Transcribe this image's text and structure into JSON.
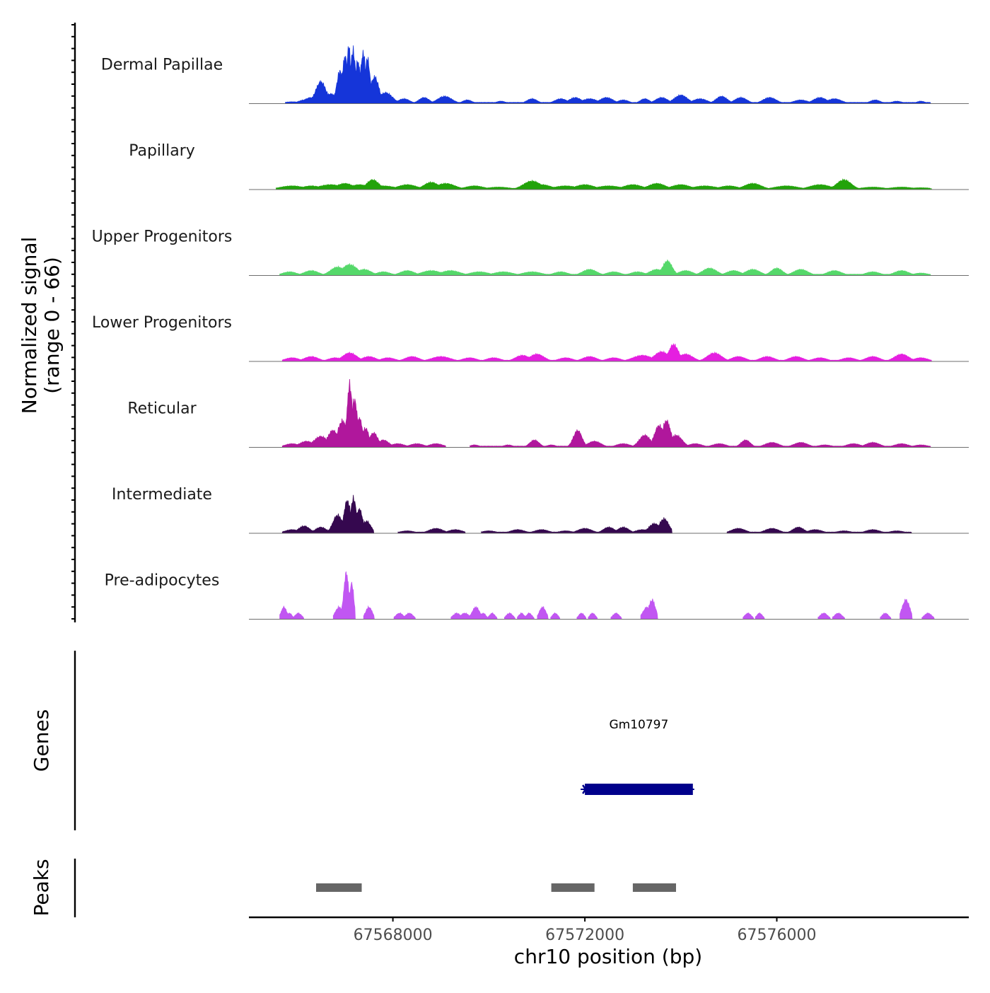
{
  "chart_data": {
    "type": "area",
    "subtype": "genome-coverage-tracks",
    "region": {
      "chrom": "chr10",
      "start": 67565000,
      "end": 67580000
    },
    "xlabel": "chr10 position (bp)",
    "xticks": [
      67568000,
      67572000,
      67576000
    ],
    "xtick_labels": [
      "67568000",
      "67572000",
      "67576000"
    ],
    "ylabel_lines": [
      "Normalized signal",
      "(range 0 - 66)"
    ],
    "ylim": [
      0,
      66
    ],
    "tracks": [
      {
        "name": "Dermal Papillae",
        "color": "#1535d9",
        "segments": [
          [
            67565760,
            67579200
          ]
        ],
        "peaks": [
          [
            67565900,
            1.5,
            180
          ],
          [
            67566150,
            3,
            120
          ],
          [
            67566300,
            5,
            150
          ],
          [
            67566500,
            18,
            110
          ],
          [
            67566700,
            8,
            150
          ],
          [
            67566900,
            27,
            70
          ],
          [
            67567000,
            39,
            55
          ],
          [
            67567080,
            48,
            40
          ],
          [
            67567170,
            44,
            55
          ],
          [
            67567270,
            35,
            55
          ],
          [
            67567380,
            42,
            55
          ],
          [
            67567470,
            37,
            55
          ],
          [
            67567620,
            22,
            90
          ],
          [
            67567850,
            9,
            140
          ],
          [
            67568230,
            4,
            120
          ],
          [
            67568650,
            5,
            110
          ],
          [
            67569080,
            6,
            150
          ],
          [
            67569550,
            3,
            100
          ],
          [
            67570250,
            2,
            100
          ],
          [
            67570900,
            4,
            110
          ],
          [
            67571500,
            4,
            130
          ],
          [
            67571800,
            5,
            130
          ],
          [
            67572100,
            4,
            160
          ],
          [
            67572450,
            5,
            140
          ],
          [
            67572800,
            3,
            120
          ],
          [
            67573250,
            4,
            100
          ],
          [
            67573600,
            5,
            130
          ],
          [
            67574000,
            7,
            140
          ],
          [
            67574400,
            4,
            150
          ],
          [
            67574850,
            6,
            120
          ],
          [
            67575250,
            5,
            130
          ],
          [
            67575850,
            5,
            140
          ],
          [
            67576500,
            3,
            150
          ],
          [
            67576900,
            5,
            140
          ],
          [
            67577200,
            4,
            150
          ],
          [
            67578050,
            3,
            110
          ],
          [
            67578500,
            2,
            110
          ],
          [
            67579000,
            2,
            90
          ]
        ]
      },
      {
        "name": "Papillary",
        "color": "#22a30a",
        "segments": [
          [
            67565760,
            67579200
          ]
        ],
        "peaks": [
          [
            67565900,
            3,
            250
          ],
          [
            67566300,
            3,
            200
          ],
          [
            67566700,
            4,
            250
          ],
          [
            67567000,
            5,
            180
          ],
          [
            67567300,
            4,
            200
          ],
          [
            67567580,
            8,
            130
          ],
          [
            67567800,
            3,
            250
          ],
          [
            67568300,
            4,
            200
          ],
          [
            67568800,
            6,
            150
          ],
          [
            67569100,
            5,
            200
          ],
          [
            67569700,
            3,
            200
          ],
          [
            67570200,
            2,
            250
          ],
          [
            67570900,
            7,
            180
          ],
          [
            67571100,
            4,
            200
          ],
          [
            67571600,
            3,
            250
          ],
          [
            67572000,
            4,
            200
          ],
          [
            67572500,
            3,
            250
          ],
          [
            67573000,
            4,
            200
          ],
          [
            67573500,
            5,
            180
          ],
          [
            67574000,
            4,
            200
          ],
          [
            67574500,
            3,
            250
          ],
          [
            67575000,
            3,
            200
          ],
          [
            67575500,
            5,
            180
          ],
          [
            67576200,
            3,
            250
          ],
          [
            67576900,
            4,
            220
          ],
          [
            67577400,
            8,
            150
          ],
          [
            67578000,
            2,
            250
          ],
          [
            67578600,
            2,
            250
          ],
          [
            67579000,
            1.5,
            250
          ]
        ]
      },
      {
        "name": "Upper Progenitors",
        "color": "#55d86a",
        "segments": [
          [
            67565760,
            67579200
          ]
        ],
        "peaks": [
          [
            67565850,
            3,
            150
          ],
          [
            67566300,
            4,
            150
          ],
          [
            67566850,
            7,
            150
          ],
          [
            67567100,
            9,
            160
          ],
          [
            67567400,
            5,
            150
          ],
          [
            67567800,
            3,
            150
          ],
          [
            67568300,
            4,
            150
          ],
          [
            67568800,
            4,
            200
          ],
          [
            67569200,
            4,
            200
          ],
          [
            67569800,
            3,
            200
          ],
          [
            67570300,
            3,
            200
          ],
          [
            67570900,
            3,
            200
          ],
          [
            67571500,
            3,
            150
          ],
          [
            67572100,
            5,
            150
          ],
          [
            67572600,
            3,
            150
          ],
          [
            67573100,
            3,
            150
          ],
          [
            67573500,
            5,
            150
          ],
          [
            67573720,
            12,
            100
          ],
          [
            67574100,
            4,
            150
          ],
          [
            67574600,
            6,
            150
          ],
          [
            67575100,
            4,
            150
          ],
          [
            67575500,
            5,
            150
          ],
          [
            67576000,
            6,
            120
          ],
          [
            67576500,
            5,
            150
          ],
          [
            67577200,
            4,
            150
          ],
          [
            67578000,
            3,
            150
          ],
          [
            67578600,
            4,
            150
          ],
          [
            67579000,
            2,
            150
          ]
        ]
      },
      {
        "name": "Lower Progenitors",
        "color": "#e51fe0",
        "segments": [
          [
            67565760,
            67579200
          ]
        ],
        "peaks": [
          [
            67565900,
            3,
            150
          ],
          [
            67566300,
            4,
            150
          ],
          [
            67566800,
            3,
            150
          ],
          [
            67567100,
            7,
            150
          ],
          [
            67567500,
            4,
            150
          ],
          [
            67567900,
            3,
            150
          ],
          [
            67568400,
            4,
            150
          ],
          [
            67569000,
            4,
            200
          ],
          [
            67569600,
            3,
            150
          ],
          [
            67570100,
            3,
            150
          ],
          [
            67570700,
            5,
            150
          ],
          [
            67571000,
            6,
            150
          ],
          [
            67571600,
            3,
            150
          ],
          [
            67572100,
            4,
            150
          ],
          [
            67572600,
            3,
            150
          ],
          [
            67573200,
            5,
            200
          ],
          [
            67573600,
            8,
            150
          ],
          [
            67573850,
            14,
            100
          ],
          [
            67574100,
            6,
            150
          ],
          [
            67574700,
            7,
            150
          ],
          [
            67575200,
            4,
            150
          ],
          [
            67575800,
            4,
            150
          ],
          [
            67576400,
            4,
            150
          ],
          [
            67576900,
            3,
            150
          ],
          [
            67577500,
            3,
            150
          ],
          [
            67578000,
            4,
            150
          ],
          [
            67578600,
            6,
            150
          ],
          [
            67579000,
            3,
            150
          ]
        ]
      },
      {
        "name": "Reticular",
        "color": "#b0179c",
        "segments": [
          [
            67565760,
            67569100
          ],
          [
            67569600,
            67579200
          ]
        ],
        "peaks": [
          [
            67565900,
            3,
            150
          ],
          [
            67566200,
            5,
            150
          ],
          [
            67566500,
            9,
            150
          ],
          [
            67566750,
            14,
            110
          ],
          [
            67566950,
            22,
            100
          ],
          [
            67567100,
            52,
            55
          ],
          [
            67567200,
            40,
            60
          ],
          [
            67567300,
            24,
            70
          ],
          [
            67567430,
            16,
            70
          ],
          [
            67567600,
            12,
            90
          ],
          [
            67567800,
            6,
            120
          ],
          [
            67568100,
            3,
            150
          ],
          [
            67568500,
            3,
            150
          ],
          [
            67568900,
            3,
            150
          ],
          [
            67569700,
            2,
            100
          ],
          [
            67570400,
            2,
            100
          ],
          [
            67570950,
            6,
            100
          ],
          [
            67571300,
            2,
            100
          ],
          [
            67571850,
            14,
            90
          ],
          [
            67572200,
            5,
            140
          ],
          [
            67572800,
            3,
            150
          ],
          [
            67573250,
            10,
            120
          ],
          [
            67573550,
            18,
            100
          ],
          [
            67573700,
            22,
            90
          ],
          [
            67573900,
            10,
            130
          ],
          [
            67574300,
            3,
            150
          ],
          [
            67574800,
            3,
            150
          ],
          [
            67575350,
            6,
            100
          ],
          [
            67575900,
            4,
            150
          ],
          [
            67576500,
            4,
            150
          ],
          [
            67577000,
            2,
            150
          ],
          [
            67577600,
            3,
            150
          ],
          [
            67578000,
            4,
            150
          ],
          [
            67578600,
            3,
            150
          ],
          [
            67579000,
            2,
            150
          ]
        ]
      },
      {
        "name": "Intermediate",
        "color": "#35084f",
        "segments": [
          [
            67565760,
            67567600
          ],
          [
            67568100,
            67569400
          ],
          [
            67569850,
            67573800
          ],
          [
            67575000,
            67578800
          ]
        ],
        "peaks": [
          [
            67565900,
            3,
            150
          ],
          [
            67566150,
            6,
            120
          ],
          [
            67566500,
            5,
            120
          ],
          [
            67566850,
            15,
            100
          ],
          [
            67567050,
            27,
            70
          ],
          [
            67567180,
            29,
            60
          ],
          [
            67567300,
            20,
            70
          ],
          [
            67567450,
            10,
            90
          ],
          [
            67568300,
            2,
            150
          ],
          [
            67568900,
            4,
            150
          ],
          [
            67569300,
            3,
            150
          ],
          [
            67570000,
            2,
            150
          ],
          [
            67570600,
            3,
            150
          ],
          [
            67571100,
            3,
            150
          ],
          [
            67571600,
            2,
            150
          ],
          [
            67572000,
            4,
            150
          ],
          [
            67572500,
            5,
            120
          ],
          [
            67572800,
            5,
            120
          ],
          [
            67573200,
            3,
            150
          ],
          [
            67573450,
            8,
            120
          ],
          [
            67573650,
            12,
            100
          ],
          [
            67575200,
            4,
            150
          ],
          [
            67575900,
            4,
            150
          ],
          [
            67576450,
            5,
            120
          ],
          [
            67576800,
            3,
            150
          ],
          [
            67577400,
            2,
            150
          ],
          [
            67578000,
            3,
            150
          ],
          [
            67578500,
            2,
            150
          ]
        ]
      },
      {
        "name": "Pre-adipocytes",
        "color": "#c156f2",
        "segments": [],
        "peaks": [
          [
            67565730,
            10,
            60
          ],
          [
            67565840,
            5,
            60
          ],
          [
            67566030,
            5,
            70
          ],
          [
            67566880,
            10,
            80
          ],
          [
            67567030,
            38,
            55
          ],
          [
            67567140,
            30,
            45
          ],
          [
            67567500,
            10,
            70
          ],
          [
            67568140,
            5,
            80
          ],
          [
            67568340,
            5,
            80
          ],
          [
            67569330,
            5,
            80
          ],
          [
            67569500,
            5,
            90
          ],
          [
            67569730,
            10,
            80
          ],
          [
            67569880,
            5,
            60
          ],
          [
            67570070,
            5,
            60
          ],
          [
            67570430,
            5,
            70
          ],
          [
            67570680,
            5,
            60
          ],
          [
            67570840,
            5,
            60
          ],
          [
            67571120,
            10,
            70
          ],
          [
            67571380,
            5,
            60
          ],
          [
            67571930,
            5,
            60
          ],
          [
            67572160,
            5,
            60
          ],
          [
            67572650,
            5,
            70
          ],
          [
            67573300,
            10,
            90
          ],
          [
            67573400,
            16,
            70
          ],
          [
            67575400,
            5,
            70
          ],
          [
            67575640,
            5,
            60
          ],
          [
            67576980,
            5,
            80
          ],
          [
            67577280,
            5,
            80
          ],
          [
            67578260,
            5,
            70
          ],
          [
            67578690,
            16,
            80
          ],
          [
            67579150,
            5,
            80
          ]
        ]
      }
    ],
    "gene_track": {
      "title": "Genes",
      "genes": [
        {
          "name": "Gm10797",
          "start": 67572000,
          "end": 67574250,
          "strand": "-",
          "color": "#00008b"
        }
      ]
    },
    "peak_track": {
      "title": "Peaks",
      "color": "#666666",
      "intervals": [
        [
          67566400,
          67567350
        ],
        [
          67571300,
          67572200
        ],
        [
          67573000,
          67573900
        ]
      ]
    }
  }
}
